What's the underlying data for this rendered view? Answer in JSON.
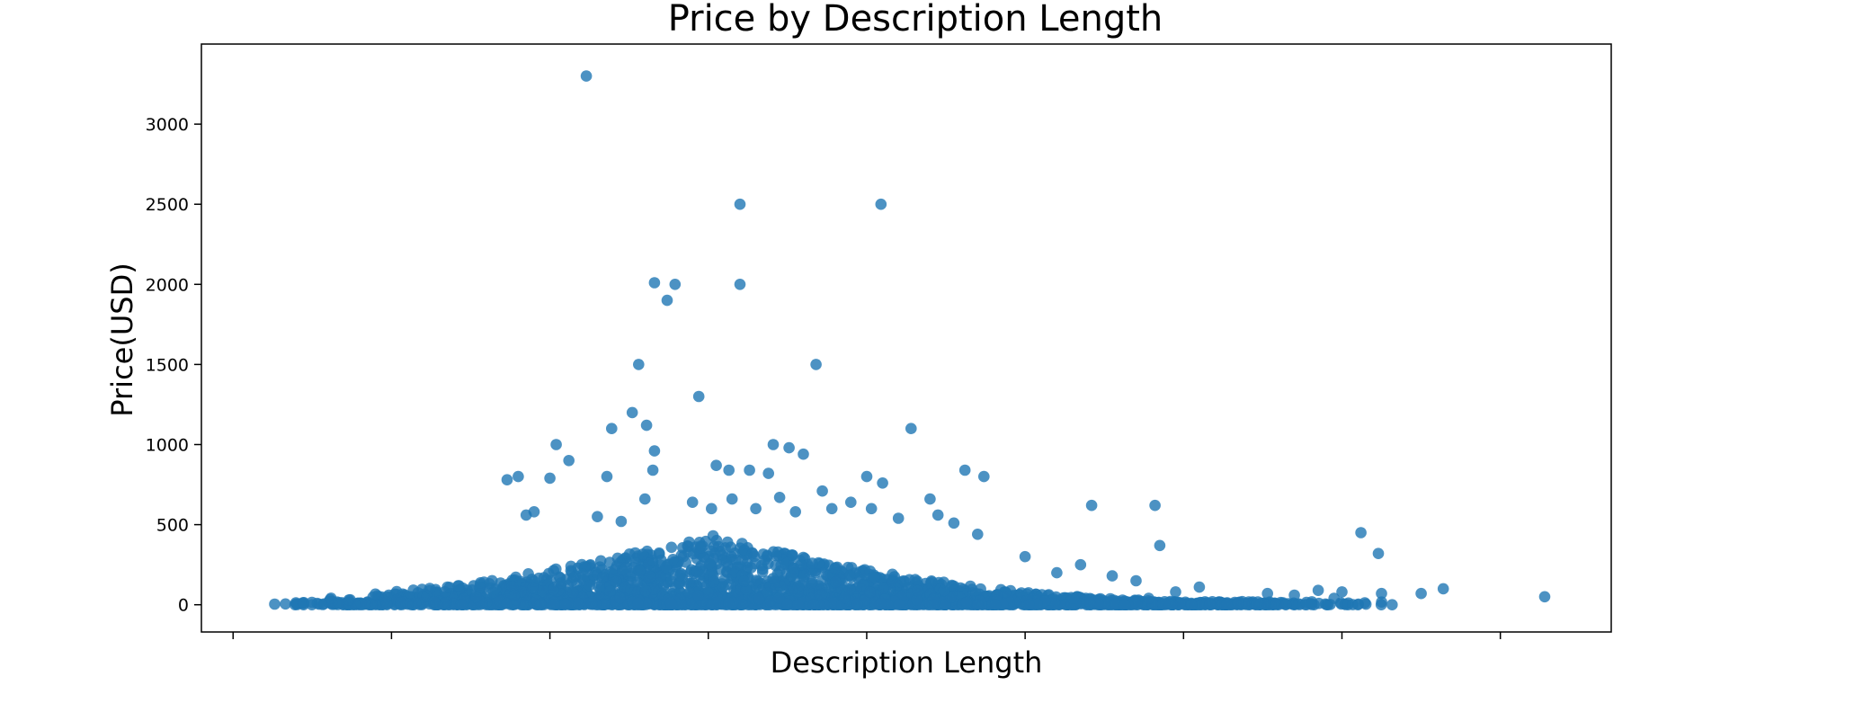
{
  "chart_data": {
    "type": "scatter",
    "title": "Price by Description Length",
    "xlabel": "Description Length",
    "ylabel": "Price(USD)",
    "ylim": [
      -170,
      3500
    ],
    "xlim": [
      -0.2,
      8.7
    ],
    "x_ticks": [
      0,
      1,
      2,
      3,
      4,
      5,
      6,
      7,
      8
    ],
    "x_tick_labels_shown": false,
    "y_ticks": [
      0,
      500,
      1000,
      1500,
      2000,
      2500,
      3000
    ],
    "y_tick_labels": [
      "0",
      "500",
      "1000",
      "1500",
      "2000",
      "2500",
      "3000"
    ],
    "grid": false,
    "legend": "none",
    "marker_color": "#1f77b4",
    "marker_alpha": 0.8,
    "series": [
      {
        "points": [
          [
            2.23,
            3300
          ],
          [
            3.2,
            2500
          ],
          [
            4.09,
            2500
          ],
          [
            2.66,
            2010
          ],
          [
            2.79,
            2000
          ],
          [
            3.2,
            2000
          ],
          [
            2.74,
            1900
          ],
          [
            2.56,
            1500
          ],
          [
            3.68,
            1500
          ],
          [
            2.94,
            1300
          ],
          [
            2.52,
            1200
          ],
          [
            2.39,
            1100
          ],
          [
            2.61,
            1120
          ],
          [
            4.28,
            1100
          ],
          [
            2.04,
            1000
          ],
          [
            3.41,
            1000
          ],
          [
            3.51,
            980
          ],
          [
            2.12,
            900
          ],
          [
            3.6,
            940
          ],
          [
            2.66,
            960
          ],
          [
            2.36,
            800
          ],
          [
            1.73,
            780
          ],
          [
            1.8,
            800
          ],
          [
            2.0,
            790
          ],
          [
            2.65,
            840
          ],
          [
            3.05,
            870
          ],
          [
            3.13,
            840
          ],
          [
            3.26,
            840
          ],
          [
            3.38,
            820
          ],
          [
            4.0,
            800
          ],
          [
            4.1,
            760
          ],
          [
            4.62,
            840
          ],
          [
            4.74,
            800
          ],
          [
            5.42,
            620
          ],
          [
            5.82,
            620
          ],
          [
            5.85,
            370
          ],
          [
            7.12,
            450
          ],
          [
            7.23,
            320
          ],
          [
            7.64,
            100
          ],
          [
            7.5,
            70
          ],
          [
            8.28,
            50
          ],
          [
            6.53,
            70
          ],
          [
            6.1,
            110
          ],
          [
            6.7,
            60
          ],
          [
            6.85,
            90
          ],
          [
            6.95,
            40
          ],
          [
            7.0,
            80
          ],
          [
            7.25,
            70
          ],
          [
            5.95,
            80
          ],
          [
            5.78,
            40
          ],
          [
            1.85,
            560
          ],
          [
            1.9,
            580
          ],
          [
            2.3,
            550
          ],
          [
            2.45,
            520
          ],
          [
            2.6,
            660
          ],
          [
            2.9,
            640
          ],
          [
            3.02,
            600
          ],
          [
            3.15,
            660
          ],
          [
            3.3,
            600
          ],
          [
            3.45,
            670
          ],
          [
            3.55,
            580
          ],
          [
            3.72,
            710
          ],
          [
            3.78,
            600
          ],
          [
            3.9,
            640
          ],
          [
            4.03,
            600
          ],
          [
            4.2,
            540
          ],
          [
            4.4,
            660
          ],
          [
            4.45,
            560
          ],
          [
            4.55,
            510
          ],
          [
            4.7,
            440
          ],
          [
            5.0,
            300
          ],
          [
            5.2,
            200
          ],
          [
            5.55,
            180
          ],
          [
            5.7,
            150
          ],
          [
            5.35,
            250
          ]
        ]
      }
    ],
    "density": {
      "x_range": [
        0.2,
        7.4
      ],
      "center": 3.0,
      "count": 2600
    }
  }
}
